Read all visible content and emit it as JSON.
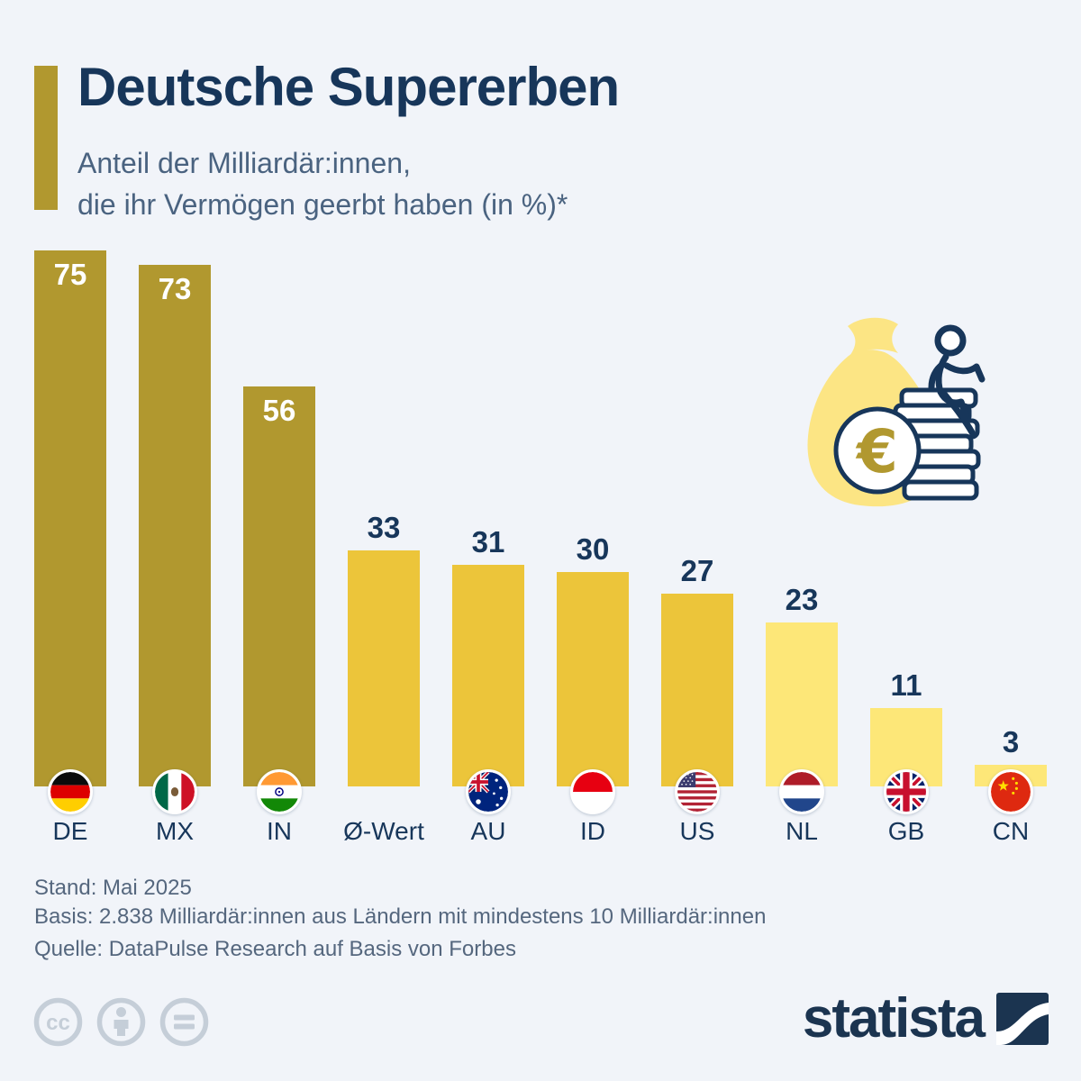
{
  "header": {
    "title": "Deutsche Supererben",
    "subtitle_line1": "Anteil der Milliardär:innen,",
    "subtitle_line2": "die ihr Vermögen geerbt haben (in %)*"
  },
  "chart_data": {
    "type": "bar",
    "title": "Deutsche Supererben",
    "subtitle": "Anteil der Milliardär:innen, die ihr Vermögen geerbt haben (in %)*",
    "unit": "%",
    "categories": [
      "DE",
      "MX",
      "IN",
      "Ø-Wert",
      "AU",
      "ID",
      "US",
      "NL",
      "GB",
      "CN"
    ],
    "values": [
      75,
      73,
      56,
      33,
      31,
      30,
      27,
      23,
      11,
      3
    ],
    "bar_color_group": [
      "dark",
      "dark",
      "dark",
      "medium",
      "medium",
      "medium",
      "medium",
      "light",
      "light",
      "light"
    ],
    "value_label_inside": [
      true,
      true,
      true,
      false,
      false,
      false,
      false,
      false,
      false,
      false
    ],
    "flags": [
      "de",
      "mx",
      "in",
      null,
      "au",
      "id",
      "us",
      "nl",
      "gb",
      "cn"
    ],
    "ylim": [
      0,
      76
    ],
    "grid": false,
    "legend": "none"
  },
  "footer": {
    "stand": "Stand: Mai 2025",
    "basis": "Basis: 2.838 Milliardär:innen aus Ländern mit mindestens 10 Milliardär:innen",
    "quelle": "Quelle: DataPulse Research auf Basis von Forbes"
  },
  "branding": {
    "logo_text": "statista",
    "license_icons": [
      "cc-icon",
      "attribution-person-icon",
      "equals-icon"
    ],
    "illustration_icon": "money-bag-coins-euro-climbing-person-icon"
  },
  "colors": {
    "background": "#f1f4f9",
    "navy": "#17365a",
    "subtitle": "#4a6380",
    "footer_text": "#55677e",
    "bar_dark": "#b1982f",
    "bar_medium": "#ecc53a",
    "bar_light": "#fde778",
    "bag_yellow": "#fce584",
    "license_gray": "#c5ced8",
    "logo_navy": "#1b3450",
    "value_inside": "#ffffff"
  }
}
